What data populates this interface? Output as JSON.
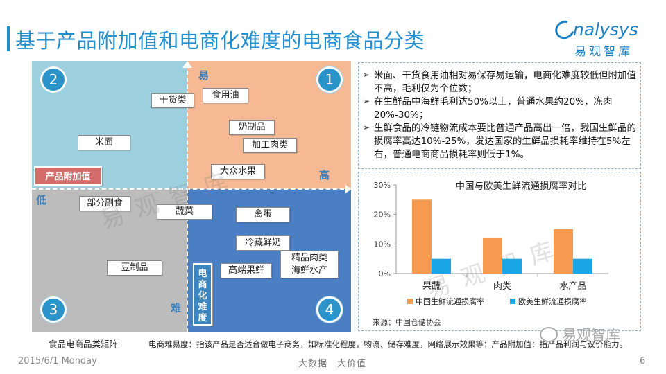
{
  "header": {
    "title": "基于产品附加值和电商化难度的电商食品分类",
    "logo_main": "nalysys",
    "logo_sub": "易观智库"
  },
  "matrix": {
    "quadrant_numbers": [
      "1",
      "2",
      "3",
      "4"
    ],
    "axis": {
      "easy": "易",
      "hard": "难",
      "low": "低",
      "high": "高",
      "value_label": "产品附加值",
      "difficulty_label": "电商化难度"
    },
    "items": {
      "dry_goods": "干货类",
      "edible_oil": "食用油",
      "dairy": "奶制品",
      "processed_meat": "加工肉类",
      "rice_flour": "米面",
      "fruit": "大众水果",
      "non_staple": "部分副食",
      "vegetables": "蔬菜",
      "poultry_eggs": "禽蛋",
      "chilled_milk": "冷藏鲜奶",
      "soy_products": "豆制品",
      "premium_fruit": "高端果鲜",
      "premium_meat_seafood_1": "精品肉类",
      "premium_meat_seafood_2": "海鲜水产"
    }
  },
  "notes": {
    "bullets": [
      "米面、干货食用油相对易保存易运输，电商化难度较低但附加值不高，毛利仅为个位数；",
      "在生鲜品中海鲜毛利达50%以上，普通水果约20%，冻肉20%-30%；",
      "生鲜食品的冷链物流成本要比普通产品高出一倍，我国生鲜品的损腐率高达10%-25%，发达国家的生鲜品损耗率维持在5%左右，普通电商商品损耗率则低于1%。"
    ],
    "bullet_mark": "➢"
  },
  "chart_data": {
    "type": "bar",
    "title": "中国与欧美生鲜流通损腐率对比",
    "categories": [
      "果蔬",
      "肉类",
      "水产品"
    ],
    "series": [
      {
        "name": "中国生鲜流通损腐率",
        "values": [
          25,
          12,
          15
        ],
        "color": "#f59a4e"
      },
      {
        "name": "欧美生鲜流通损腐率",
        "values": [
          5,
          5,
          5
        ],
        "color": "#1aa6e6"
      }
    ],
    "y_ticks": [
      "0%",
      "10%",
      "20%",
      "30%"
    ],
    "ylim": [
      0,
      30
    ],
    "legend_position": "bottom",
    "grid": false
  },
  "source": "来源：中国仓储协会",
  "footnotes": {
    "left": "食品电商品类矩阵",
    "right": "电商难易度：指该产品是否适合做电子商务，如标准化程度，物流、储存难度，网络展示效果等；产品附加值：指产品利润与议价能力。"
  },
  "footer": {
    "date": "2015/6/1 Monday",
    "middle": "大数据　大价值",
    "page": "6"
  },
  "wechat": {
    "text": "易观智库"
  },
  "watermark": "易观智库"
}
